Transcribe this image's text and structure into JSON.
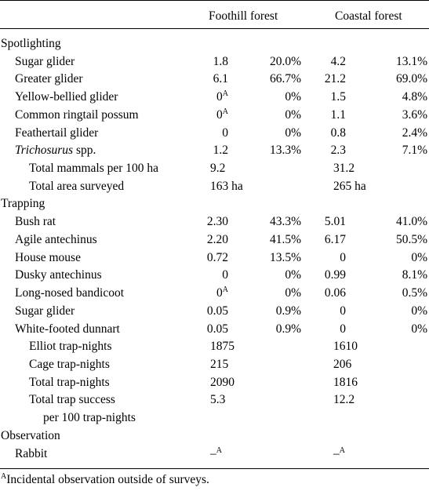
{
  "header": {
    "col1": "Foothill forest",
    "col2": "Coastal forest"
  },
  "sections": [
    {
      "title": "Spotlighting",
      "rows": [
        {
          "label": "Sugar glider",
          "indent": 1,
          "v1": "1.8",
          "p1": "20.0%",
          "v2": "4.2",
          "p2": "13.1%"
        },
        {
          "label": "Greater glider",
          "indent": 1,
          "v1": "6.1",
          "p1": "66.7%",
          "v2": "21.2",
          "p2": "69.0%"
        },
        {
          "label": "Yellow-bellied glider",
          "indent": 1,
          "v1": "0",
          "v1_sup": "A",
          "p1": "0%",
          "v2": "1.5",
          "p2": "4.8%"
        },
        {
          "label": "Common ringtail possum",
          "indent": 1,
          "v1": "0",
          "v1_sup": "A",
          "p1": "0%",
          "v2": "1.1",
          "p2": "3.6%"
        },
        {
          "label": "Feathertail glider",
          "indent": 1,
          "v1": "0",
          "p1": "0%",
          "v2": "0.8",
          "p2": "2.4%"
        },
        {
          "label": "Trichosurus",
          "label_suffix": " spp.",
          "italic": true,
          "indent": 1,
          "v1": "1.2",
          "p1": "13.3%",
          "v2": "2.3",
          "p2": "7.1%"
        },
        {
          "label": "Total mammals per 100 ha",
          "indent": 2,
          "t1": "9.2",
          "t2": "31.2"
        },
        {
          "label": "Total area surveyed",
          "indent": 2,
          "t1": "163 ha",
          "t2": "265 ha"
        }
      ]
    },
    {
      "title": "Trapping",
      "rows": [
        {
          "label": "Bush rat",
          "indent": 1,
          "v1": "2.30",
          "p1": "43.3%",
          "v2": "5.01",
          "p2": "41.0%"
        },
        {
          "label": "Agile antechinus",
          "indent": 1,
          "v1": "2.20",
          "p1": "41.5%",
          "v2": "6.17",
          "p2": "50.5%"
        },
        {
          "label": "House mouse",
          "indent": 1,
          "v1": "0.72",
          "p1": "13.5%",
          "v2": "0",
          "p2": "0%"
        },
        {
          "label": "Dusky antechinus",
          "indent": 1,
          "v1": "0",
          "p1": "0%",
          "v2": "0.99",
          "p2": "8.1%"
        },
        {
          "label": "Long-nosed bandicoot",
          "indent": 1,
          "v1": "0",
          "v1_sup": "A",
          "p1": "0%",
          "v2": "0.06",
          "p2": "0.5%"
        },
        {
          "label": "Sugar glider",
          "indent": 1,
          "v1": "0.05",
          "p1": "0.9%",
          "v2": "0",
          "p2": "0%"
        },
        {
          "label": "White-footed dunnart",
          "indent": 1,
          "v1": "0.05",
          "p1": "0.9%",
          "v2": "0",
          "p2": "0%"
        },
        {
          "label": "Elliot trap-nights",
          "indent": 2,
          "t1": "1875",
          "t2": "1610"
        },
        {
          "label": "Cage trap-nights",
          "indent": 2,
          "t1": "215",
          "t2": "206"
        },
        {
          "label": "Total trap-nights",
          "indent": 2,
          "t1": "2090",
          "t2": "1816"
        },
        {
          "label": "Total trap success",
          "indent": 2,
          "t1": "5.3",
          "t2": "12.2"
        },
        {
          "label": "per 100 trap-nights",
          "indent": 3
        }
      ]
    },
    {
      "title": "Observation",
      "rows": [
        {
          "label": "Rabbit",
          "indent": 1,
          "t1": "–",
          "t1_sup": "A",
          "t2": "–",
          "t2_sup": "A"
        }
      ]
    }
  ],
  "footnote": {
    "mark": "A",
    "text": "Incidental observation outside of surveys."
  }
}
